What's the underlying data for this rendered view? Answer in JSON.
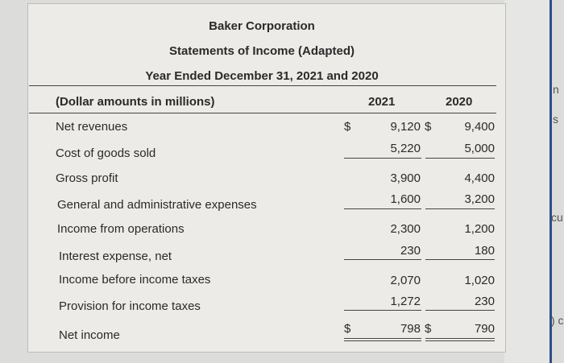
{
  "header": {
    "company": "Baker Corporation",
    "statement": "Statements of Income (Adapted)",
    "period": "Year Ended December 31, 2021 and 2020"
  },
  "columns": {
    "label": "(Dollar amounts in millions)",
    "y1": "2021",
    "y2": "2020"
  },
  "rows": [
    {
      "label": "Net revenues",
      "cur": "$",
      "v1": "9,120",
      "cur2": "$",
      "v2": "9,400"
    },
    {
      "label": "Cost of goods sold",
      "v1": "5,220",
      "v2": "5,000"
    },
    {
      "label": "Gross profit",
      "v1": "3,900",
      "v2": "4,400"
    },
    {
      "label": "General and administrative expenses",
      "v1": "1,600",
      "v2": "3,200"
    },
    {
      "label": "Income from operations",
      "v1": "2,300",
      "v2": "1,200"
    },
    {
      "label": "Interest expense, net",
      "v1": "230",
      "v2": "180"
    },
    {
      "label": "Income before income taxes",
      "v1": "2,070",
      "v2": "1,020"
    },
    {
      "label": "Provision for income taxes",
      "v1": "1,272",
      "v2": "230"
    },
    {
      "label": "Net income",
      "cur": "$",
      "v1": "798",
      "cur2": "$",
      "v2": "790"
    }
  ],
  "side_fragments": [
    "n",
    "s",
    "cu",
    ") c"
  ]
}
